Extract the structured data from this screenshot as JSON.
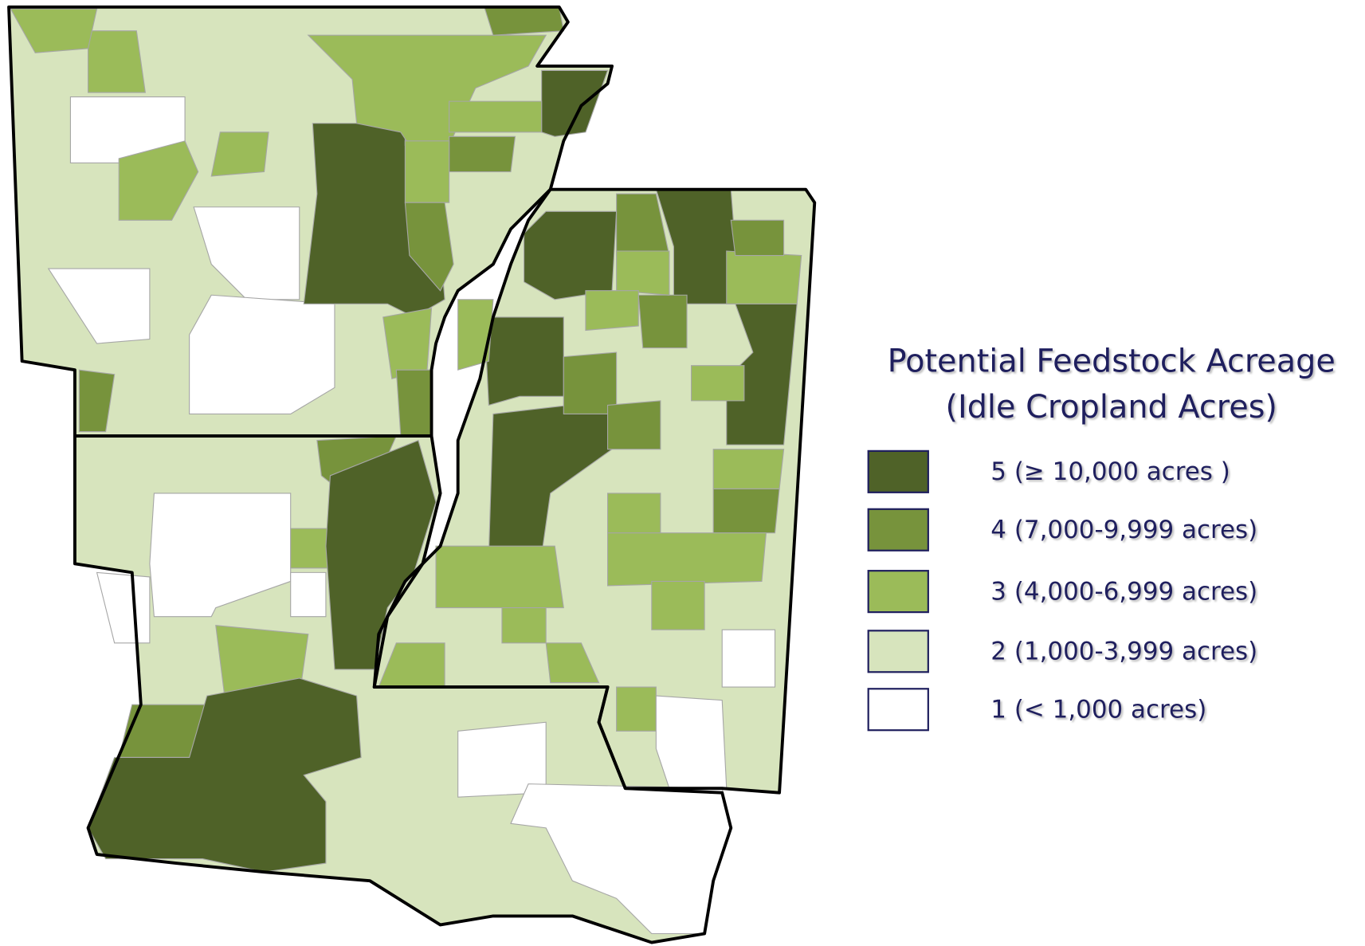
{
  "legend": {
    "title": [
      "Potential Feedstock Acreage",
      "(Idle Cropland Acres)"
    ],
    "items": [
      {
        "label": "5 (≥ 10,000 acres )",
        "color": "#4f6228"
      },
      {
        "label": "4 (7,000-9,999 acres)",
        "color": "#77933c"
      },
      {
        "label": "3 (4,000-6,999 acres)",
        "color": "#9bbb59"
      },
      {
        "label": "2 (1,000-3,999 acres)",
        "color": "#d7e4bd"
      },
      {
        "label": "1 (< 1,000 acres)",
        "color": "#ffffff"
      }
    ]
  }
}
